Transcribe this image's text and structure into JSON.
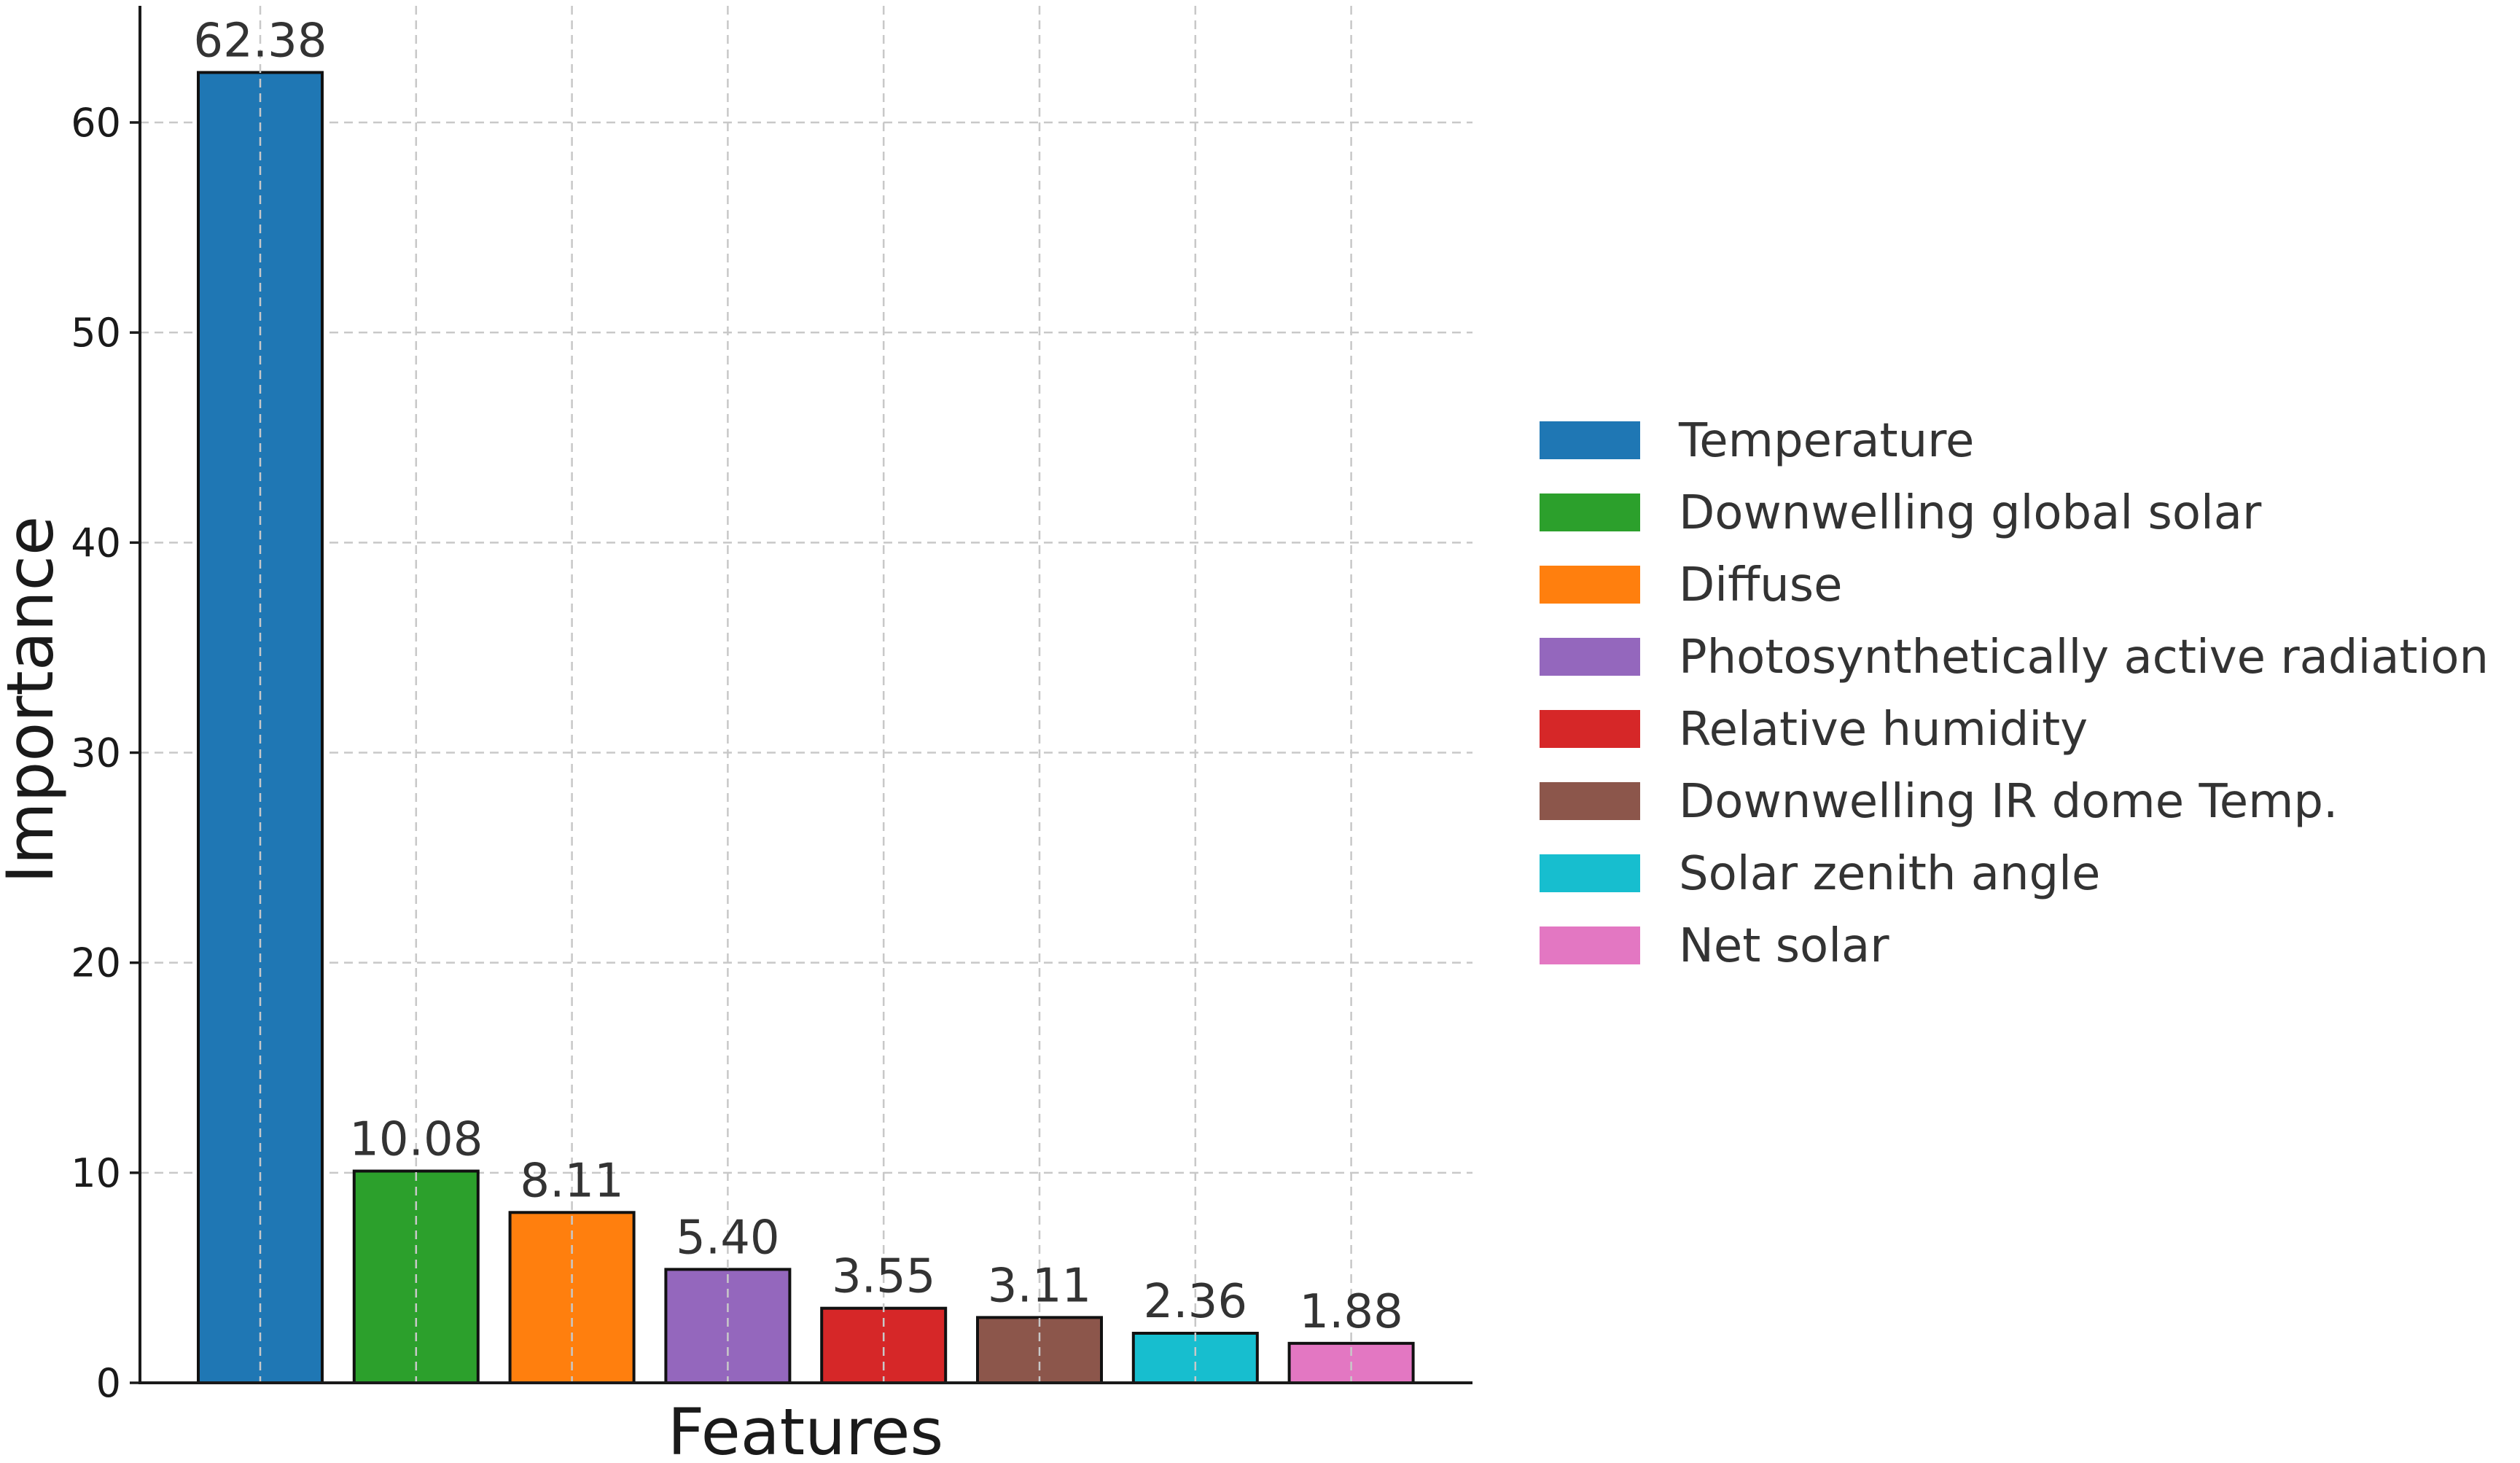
{
  "chart_data": {
    "type": "bar",
    "title": "",
    "xlabel": "Features",
    "ylabel": "Importance",
    "ylim": [
      0,
      65.5
    ],
    "yticks": [
      0,
      10,
      20,
      30,
      40,
      50,
      60
    ],
    "grid": true,
    "legend_position": "right",
    "categories": [
      "Temperature",
      "Downwelling global solar",
      "Diffuse",
      "Photosynthetically active radiation",
      "Relative humidity",
      "Downwelling IR dome Temp.",
      "Solar zenith angle",
      "Net solar"
    ],
    "values": [
      62.38,
      10.08,
      8.11,
      5.4,
      3.55,
      3.11,
      2.36,
      1.88
    ],
    "value_labels": [
      "62.38",
      "10.08",
      "8.11",
      "5.40",
      "3.55",
      "3.11",
      "2.36",
      "1.88"
    ],
    "colors": [
      "#1f77b4",
      "#2ca02c",
      "#ff7f0e",
      "#9467bd",
      "#d62728",
      "#8c564b",
      "#17becf",
      "#e377c2"
    ]
  }
}
